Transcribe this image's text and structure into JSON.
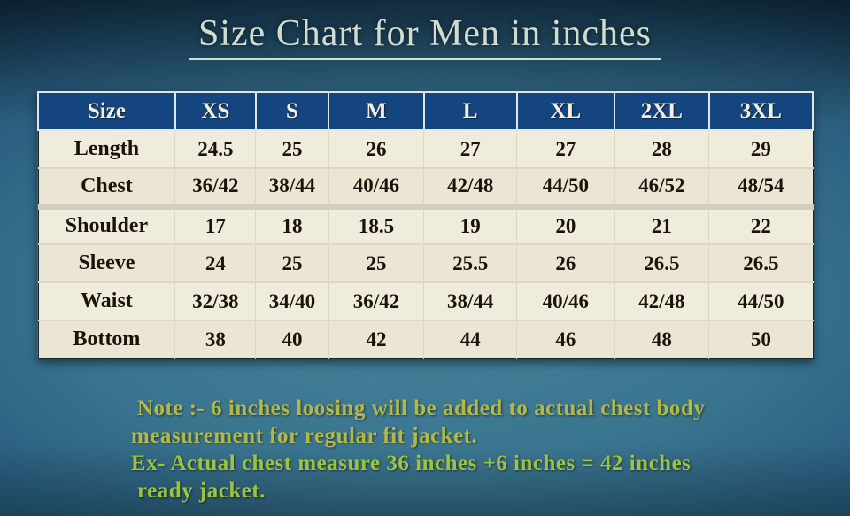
{
  "page_title": "Size Chart for Men in inches",
  "colors": {
    "background_center": "#478199",
    "background_edge": "#05090e",
    "title_text": "#cfdcd2",
    "header_bg": "#15457f",
    "header_text": "#f2eee0",
    "row_bg": "#f0ecdb",
    "cell_text": "#1b130a",
    "note_text": "#b4b844",
    "note_ex_text": "#9cc440"
  },
  "chart_data": {
    "type": "table",
    "title": "Size Chart for Men in inches",
    "columns": [
      "Size",
      "XS",
      "S",
      "M",
      "L",
      "XL",
      "2XL",
      "3XL"
    ],
    "rows": [
      {
        "label": "Length",
        "values": [
          "24.5",
          "25",
          "26",
          "27",
          "27",
          "28",
          "29"
        ]
      },
      {
        "label": "Chest",
        "values": [
          "36/42",
          "38/44",
          "40/46",
          "42/48",
          "44/50",
          "46/52",
          "48/54"
        ]
      },
      {
        "label": "Shoulder",
        "values": [
          "17",
          "18",
          "18.5",
          "19",
          "20",
          "21",
          "22"
        ]
      },
      {
        "label": "Sleeve",
        "values": [
          "24",
          "25",
          "25",
          "25.5",
          "26",
          "26.5",
          "26.5"
        ]
      },
      {
        "label": "Waist",
        "values": [
          "32/38",
          "34/40",
          "36/42",
          "38/44",
          "40/46",
          "42/48",
          "44/50"
        ]
      },
      {
        "label": "Bottom",
        "values": [
          "38",
          "40",
          "42",
          "44",
          "46",
          "48",
          "50"
        ]
      }
    ],
    "units": "inches"
  },
  "note": {
    "lines": [
      "Note :- 6 inches loosing will be added to actual chest body",
      "measurement  for regular  fit jacket.",
      "Ex- Actual chest measure  36 inches +6 inches = 42 inches",
      "ready  jacket."
    ]
  }
}
